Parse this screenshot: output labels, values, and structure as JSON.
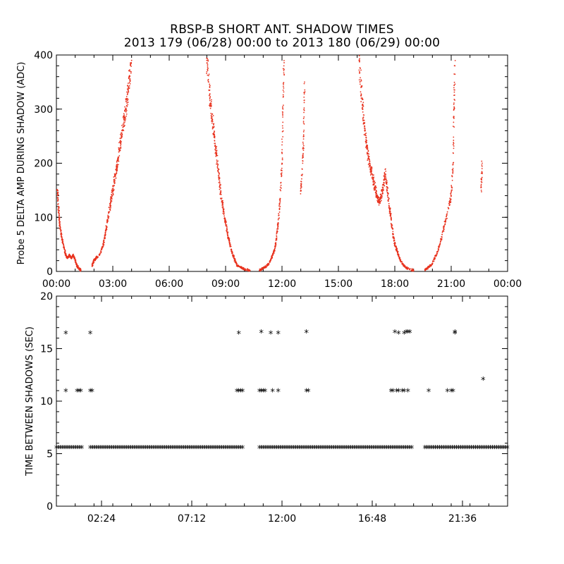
{
  "title": "RBSP-B SHORT ANT. SHADOW TIMES",
  "subtitle": "2013 179 (06/28) 00:00 to 2013 180 (06/29) 00:00",
  "colors": {
    "top_series": "#e8321e",
    "bottom_series": "#000000",
    "axes": "#000000"
  },
  "chart_data": [
    {
      "type": "scatter",
      "ylabel": "Probe 5 DELTA AMP DURING SHADOW (ADC)",
      "xlabel": "",
      "xlim": [
        0,
        24
      ],
      "ylim": [
        0,
        400
      ],
      "x_tick_labels": [
        "00:00",
        "03:00",
        "06:00",
        "09:00",
        "12:00",
        "15:00",
        "18:00",
        "21:00",
        "00:00"
      ],
      "x_ticks": [
        0,
        3,
        6,
        9,
        12,
        15,
        18,
        21,
        24
      ],
      "y_ticks": [
        0,
        100,
        200,
        300,
        400
      ],
      "series": [
        {
          "color": "#e8321e",
          "points": [
            [
              0.05,
              150
            ],
            [
              0.1,
              120
            ],
            [
              0.15,
              100
            ],
            [
              0.2,
              80
            ],
            [
              0.3,
              60
            ],
            [
              0.4,
              45
            ],
            [
              0.5,
              30
            ],
            [
              0.6,
              25
            ],
            [
              0.7,
              30
            ],
            [
              0.8,
              25
            ],
            [
              0.9,
              30
            ],
            [
              1.0,
              20
            ],
            [
              1.1,
              10
            ],
            [
              1.2,
              5
            ],
            [
              1.3,
              2
            ],
            [
              1.9,
              10
            ],
            [
              2.0,
              20
            ],
            [
              2.1,
              25
            ],
            [
              2.3,
              30
            ],
            [
              2.5,
              50
            ],
            [
              2.6,
              70
            ],
            [
              2.7,
              90
            ],
            [
              2.8,
              110
            ],
            [
              2.9,
              130
            ],
            [
              3.0,
              150
            ],
            [
              3.1,
              170
            ],
            [
              3.2,
              190
            ],
            [
              3.3,
              210
            ],
            [
              3.4,
              240
            ],
            [
              3.5,
              260
            ],
            [
              3.6,
              280
            ],
            [
              3.7,
              300
            ],
            [
              3.8,
              330
            ],
            [
              3.9,
              360
            ],
            [
              4.0,
              390
            ],
            [
              8.0,
              390
            ],
            [
              8.1,
              350
            ],
            [
              8.2,
              310
            ],
            [
              8.3,
              280
            ],
            [
              8.4,
              250
            ],
            [
              8.5,
              220
            ],
            [
              8.6,
              190
            ],
            [
              8.7,
              160
            ],
            [
              8.8,
              130
            ],
            [
              8.9,
              110
            ],
            [
              9.0,
              90
            ],
            [
              9.1,
              70
            ],
            [
              9.2,
              55
            ],
            [
              9.3,
              40
            ],
            [
              9.4,
              30
            ],
            [
              9.5,
              20
            ],
            [
              9.6,
              12
            ],
            [
              9.8,
              8
            ],
            [
              10.0,
              4
            ],
            [
              10.3,
              2
            ],
            [
              10.8,
              2
            ],
            [
              11.0,
              6
            ],
            [
              11.2,
              10
            ],
            [
              11.4,
              20
            ],
            [
              11.5,
              30
            ],
            [
              11.6,
              40
            ],
            [
              11.7,
              60
            ],
            [
              11.8,
              90
            ],
            [
              11.9,
              130
            ],
            [
              12.0,
              200
            ],
            [
              12.05,
              300
            ],
            [
              12.1,
              380
            ],
            [
              13.0,
              150
            ],
            [
              13.1,
              200
            ],
            [
              13.15,
              250
            ],
            [
              13.2,
              350
            ],
            [
              16.1,
              390
            ],
            [
              16.2,
              340
            ],
            [
              16.3,
              300
            ],
            [
              16.4,
              260
            ],
            [
              16.5,
              230
            ],
            [
              16.6,
              210
            ],
            [
              16.7,
              190
            ],
            [
              16.8,
              180
            ],
            [
              16.9,
              160
            ],
            [
              17.0,
              150
            ],
            [
              17.1,
              130
            ],
            [
              17.2,
              130
            ],
            [
              17.3,
              140
            ],
            [
              17.4,
              160
            ],
            [
              17.5,
              180
            ],
            [
              17.6,
              150
            ],
            [
              17.7,
              120
            ],
            [
              17.8,
              100
            ],
            [
              17.9,
              70
            ],
            [
              18.0,
              50
            ],
            [
              18.1,
              40
            ],
            [
              18.2,
              30
            ],
            [
              18.3,
              20
            ],
            [
              18.5,
              10
            ],
            [
              18.7,
              5
            ],
            [
              19.0,
              2
            ],
            [
              19.6,
              3
            ],
            [
              19.8,
              8
            ],
            [
              20.0,
              15
            ],
            [
              20.2,
              30
            ],
            [
              20.4,
              50
            ],
            [
              20.6,
              80
            ],
            [
              20.8,
              110
            ],
            [
              21.0,
              140
            ],
            [
              21.1,
              200
            ],
            [
              21.15,
              300
            ],
            [
              21.2,
              380
            ],
            [
              22.6,
              150
            ],
            [
              22.65,
              200
            ]
          ]
        }
      ]
    },
    {
      "type": "scatter",
      "ylabel": "TIME BETWEEN SHADOWS (SEC)",
      "xlabel": "",
      "xlim": [
        0,
        24
      ],
      "ylim": [
        0,
        20
      ],
      "x_tick_labels": [
        "02:24",
        "07:12",
        "12:00",
        "16:48",
        "21:36"
      ],
      "x_ticks": [
        2.4,
        7.2,
        12.0,
        16.8,
        21.6
      ],
      "y_ticks": [
        0,
        5,
        10,
        15,
        20
      ],
      "baseline": {
        "value": 5.5,
        "ranges": [
          [
            0.0,
            1.4
          ],
          [
            1.8,
            10.0
          ],
          [
            10.8,
            18.9
          ],
          [
            19.6,
            24.0
          ]
        ]
      },
      "series": [
        {
          "color": "#000000",
          "marker": "asterisk",
          "points": [
            [
              0.5,
              16.4
            ],
            [
              0.5,
              10.9
            ],
            [
              1.1,
              10.9
            ],
            [
              1.2,
              10.9
            ],
            [
              1.3,
              10.9
            ],
            [
              1.8,
              16.4
            ],
            [
              1.8,
              10.9
            ],
            [
              1.9,
              10.9
            ],
            [
              9.7,
              16.4
            ],
            [
              9.6,
              10.9
            ],
            [
              9.7,
              10.9
            ],
            [
              9.8,
              10.9
            ],
            [
              9.9,
              10.9
            ],
            [
              10.9,
              16.5
            ],
            [
              10.8,
              10.9
            ],
            [
              10.9,
              10.9
            ],
            [
              11.0,
              10.9
            ],
            [
              11.1,
              10.9
            ],
            [
              11.4,
              16.4
            ],
            [
              11.5,
              10.9
            ],
            [
              11.8,
              16.4
            ],
            [
              11.8,
              10.9
            ],
            [
              13.3,
              16.5
            ],
            [
              13.3,
              10.9
            ],
            [
              13.4,
              10.9
            ],
            [
              17.8,
              10.9
            ],
            [
              17.9,
              10.9
            ],
            [
              18.1,
              10.9
            ],
            [
              18.2,
              10.9
            ],
            [
              18.4,
              10.9
            ],
            [
              18.5,
              10.9
            ],
            [
              18.7,
              10.9
            ],
            [
              18.0,
              16.5
            ],
            [
              18.2,
              16.4
            ],
            [
              18.5,
              16.4
            ],
            [
              18.6,
              16.5
            ],
            [
              18.7,
              16.5
            ],
            [
              18.8,
              16.5
            ],
            [
              19.8,
              10.9
            ],
            [
              20.8,
              10.9
            ],
            [
              21.0,
              10.9
            ],
            [
              21.1,
              10.9
            ],
            [
              21.2,
              16.5
            ],
            [
              21.2,
              16.4
            ],
            [
              22.7,
              12.0
            ]
          ]
        }
      ]
    }
  ]
}
